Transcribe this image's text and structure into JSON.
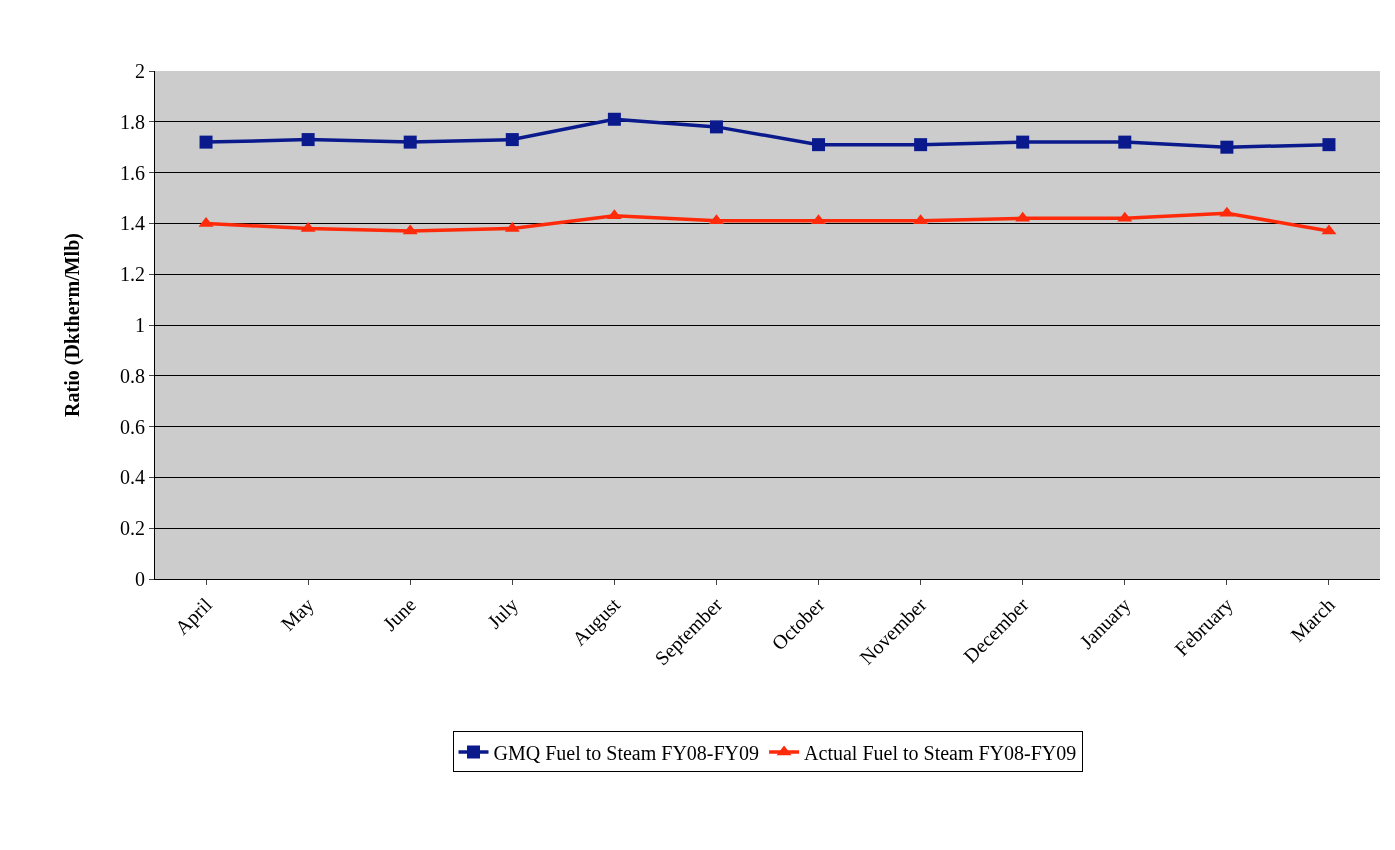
{
  "chart_data": {
    "type": "line",
    "ylabel": "Ratio (Dktherm/Mlb)",
    "categories": [
      "April",
      "May",
      "June",
      "July",
      "August",
      "September",
      "October",
      "November",
      "December",
      "January",
      "February",
      "March"
    ],
    "series": [
      {
        "name": "GMQ Fuel to Steam FY08-FY09",
        "color": "#0a1a8c",
        "marker": "square",
        "values": [
          1.72,
          1.73,
          1.72,
          1.73,
          1.81,
          1.78,
          1.71,
          1.71,
          1.72,
          1.72,
          1.7,
          1.71
        ]
      },
      {
        "name": "Actual Fuel to Steam FY08-FY09",
        "color": "#ff2a0a",
        "marker": "triangle",
        "values": [
          1.4,
          1.38,
          1.37,
          1.38,
          1.43,
          1.41,
          1.41,
          1.41,
          1.42,
          1.42,
          1.44,
          1.37
        ]
      }
    ],
    "ylim": [
      0,
      2
    ],
    "yticks": [
      0,
      0.2,
      0.4,
      0.6,
      0.8,
      1,
      1.2,
      1.4,
      1.6,
      1.8,
      2
    ],
    "grid": "y",
    "legend": "bottom",
    "line_style": "solid"
  }
}
